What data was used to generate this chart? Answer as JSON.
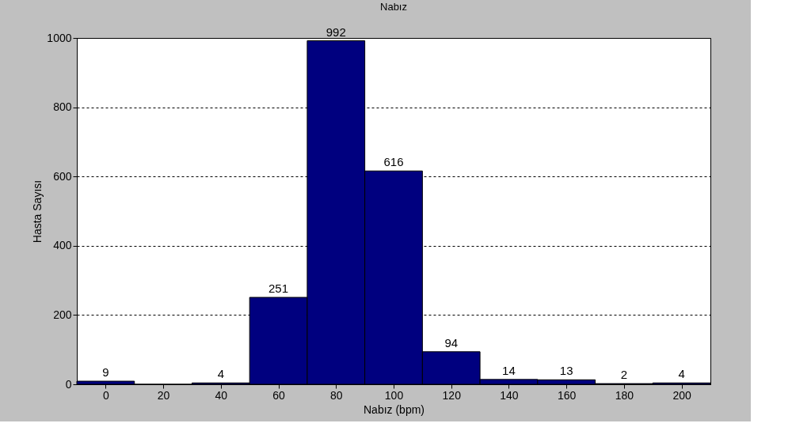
{
  "chart_data": {
    "type": "histogram",
    "title": "Nabız",
    "xlabel": "Nabız (bpm)",
    "ylabel": "Hasta Sayısı",
    "bins": [
      -10,
      10,
      30,
      50,
      70,
      90,
      110,
      130,
      150,
      170,
      190,
      210
    ],
    "values": [
      9,
      0,
      4,
      251,
      992,
      616,
      94,
      14,
      13,
      2,
      4
    ],
    "value_labels": [
      "9",
      null,
      "4",
      "251",
      "992",
      "616",
      "94",
      "14",
      "13",
      "2",
      "4"
    ],
    "color": "#00007f",
    "xlim": [
      -10,
      210
    ],
    "xticks": [
      0,
      20,
      40,
      60,
      80,
      100,
      120,
      140,
      160,
      180,
      200
    ],
    "ylim": [
      0,
      1000
    ],
    "yticks": [
      0,
      200,
      400,
      600,
      800,
      {
        "value": 1000,
        "label": "1000"
      }
    ],
    "grid": "y"
  }
}
